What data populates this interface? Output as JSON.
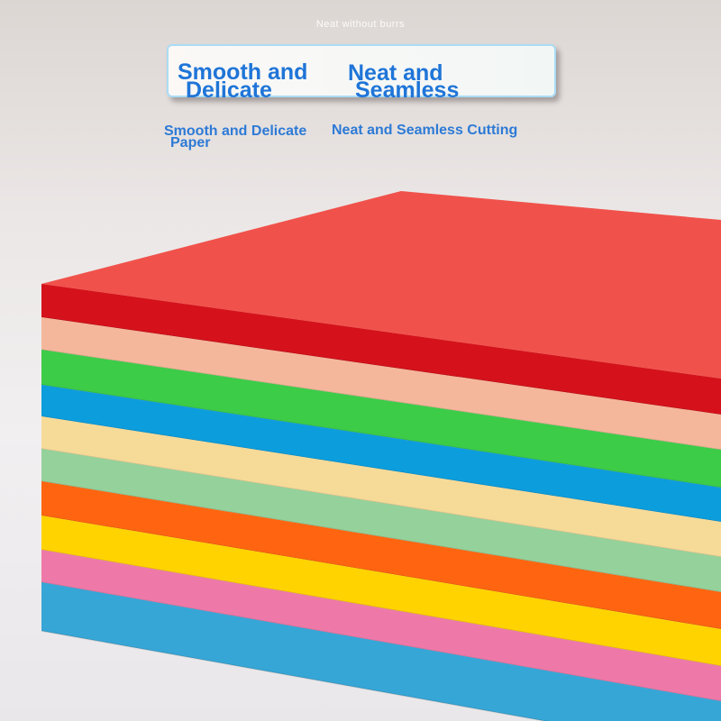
{
  "caption": "Neat without burrs",
  "banner": {
    "left": [
      "Smooth and",
      "Delicate"
    ],
    "right": [
      "Neat and",
      "Seamless"
    ]
  },
  "subtitles": {
    "left": [
      "Smooth and Delicate",
      "Paper"
    ],
    "right": "Neat and Seamless Cutting"
  },
  "paper_colors": [
    "#d5121b",
    "#f4b79c",
    "#3ccc48",
    "#0c9ddc",
    "#f6da98",
    "#95d19b",
    "#ff6510",
    "#ffd300",
    "#ee79a8",
    "#36a6d6"
  ],
  "top_surface_color": "#f0524b",
  "text_color": "#1f75d8"
}
